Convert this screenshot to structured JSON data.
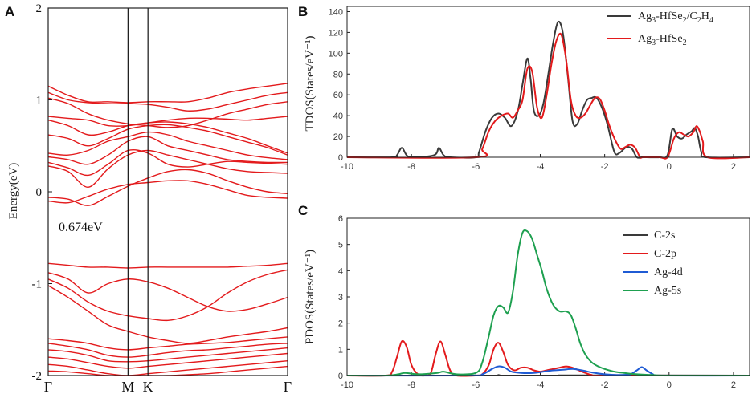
{
  "chart_data": [
    {
      "panel": "A",
      "type": "line",
      "title": "",
      "ylabel": "Energy(eV)",
      "ylim": [
        -2,
        2
      ],
      "yticks": [
        -2,
        -1,
        0,
        1,
        2
      ],
      "kpoints": [
        "Γ",
        "M",
        "K",
        "Γ"
      ],
      "kpoint_positions": [
        0,
        1,
        1.25,
        3.0
      ],
      "annotation": "0.674eV",
      "band_color": "#e31a1c",
      "bands": [
        {
          "name": "c1",
          "values": [
            -0.1,
            -0.12,
            -0.05,
            0.03,
            0.08,
            0.1,
            0.12,
            0.12,
            0.08,
            0.02,
            -0.04,
            -0.06,
            -0.07
          ]
        },
        {
          "name": "c2",
          "values": [
            -0.06,
            -0.08,
            -0.15,
            -0.05,
            0.06,
            0.15,
            0.22,
            0.24,
            0.2,
            0.12,
            0.05,
            0.0,
            -0.02
          ]
        },
        {
          "name": "c3",
          "values": [
            0.28,
            0.22,
            0.05,
            0.25,
            0.4,
            0.45,
            0.4,
            0.35,
            0.3,
            0.25,
            0.22,
            0.21,
            0.2
          ]
        },
        {
          "name": "c4",
          "values": [
            0.32,
            0.26,
            0.18,
            0.3,
            0.45,
            0.42,
            0.3,
            0.27,
            0.3,
            0.33,
            0.32,
            0.31,
            0.3
          ]
        },
        {
          "name": "c5",
          "values": [
            0.38,
            0.35,
            0.3,
            0.4,
            0.55,
            0.6,
            0.5,
            0.45,
            0.4,
            0.35,
            0.33,
            0.32,
            0.32
          ]
        },
        {
          "name": "c6",
          "values": [
            0.42,
            0.4,
            0.45,
            0.55,
            0.6,
            0.65,
            0.62,
            0.55,
            0.5,
            0.45,
            0.4,
            0.37,
            0.35
          ]
        },
        {
          "name": "c7",
          "values": [
            0.62,
            0.58,
            0.5,
            0.58,
            0.68,
            0.72,
            0.73,
            0.7,
            0.66,
            0.6,
            0.54,
            0.48,
            0.4
          ]
        },
        {
          "name": "c8",
          "values": [
            0.78,
            0.72,
            0.62,
            0.65,
            0.72,
            0.75,
            0.76,
            0.74,
            0.7,
            0.64,
            0.58,
            0.5,
            0.42
          ]
        },
        {
          "name": "c9",
          "values": [
            0.82,
            0.8,
            0.78,
            0.72,
            0.72,
            0.75,
            0.78,
            0.8,
            0.8,
            0.79,
            0.78,
            0.8,
            0.82
          ]
        },
        {
          "name": "c10",
          "values": [
            1.02,
            0.96,
            0.85,
            0.78,
            0.74,
            0.72,
            0.7,
            0.72,
            0.78,
            0.85,
            0.9,
            0.95,
            0.98
          ]
        },
        {
          "name": "c11",
          "values": [
            1.08,
            1.0,
            0.97,
            0.96,
            0.96,
            0.95,
            0.92,
            0.88,
            0.9,
            0.95,
            1.0,
            1.05,
            1.08
          ]
        },
        {
          "name": "c12",
          "values": [
            1.15,
            1.05,
            0.98,
            0.98,
            0.97,
            0.98,
            0.98,
            0.98,
            1.02,
            1.08,
            1.12,
            1.15,
            1.18
          ]
        },
        {
          "name": "v1",
          "values": [
            -0.78,
            -0.8,
            -0.82,
            -0.82,
            -0.83,
            -0.82,
            -0.82,
            -0.82,
            -0.82,
            -0.82,
            -0.81,
            -0.8,
            -0.78
          ]
        },
        {
          "name": "v2",
          "values": [
            -0.88,
            -0.95,
            -1.1,
            -1.0,
            -0.95,
            -0.98,
            -1.05,
            -1.15,
            -1.25,
            -1.3,
            -1.28,
            -1.22,
            -1.15
          ]
        },
        {
          "name": "v3",
          "values": [
            -0.95,
            -1.05,
            -1.2,
            -1.3,
            -1.35,
            -1.38,
            -1.4,
            -1.35,
            -1.25,
            -1.1,
            -0.98,
            -0.9,
            -0.85
          ]
        },
        {
          "name": "v4",
          "values": [
            -1.02,
            -1.15,
            -1.3,
            -1.45,
            -1.52,
            -1.58,
            -1.62,
            -1.65,
            -1.62,
            -1.58,
            -1.55,
            -1.52,
            -1.48
          ]
        },
        {
          "name": "v5",
          "values": [
            -1.6,
            -1.62,
            -1.65,
            -1.7,
            -1.72,
            -1.7,
            -1.68,
            -1.66,
            -1.65,
            -1.64,
            -1.62,
            -1.6,
            -1.58
          ]
        },
        {
          "name": "v6",
          "values": [
            -1.65,
            -1.68,
            -1.72,
            -1.78,
            -1.8,
            -1.78,
            -1.75,
            -1.73,
            -1.72,
            -1.7,
            -1.68,
            -1.66,
            -1.65
          ]
        },
        {
          "name": "v7",
          "values": [
            -1.72,
            -1.74,
            -1.78,
            -1.84,
            -1.85,
            -1.84,
            -1.82,
            -1.8,
            -1.78,
            -1.76,
            -1.74,
            -1.72,
            -1.7
          ]
        },
        {
          "name": "v8",
          "values": [
            -1.8,
            -1.82,
            -1.86,
            -1.9,
            -1.92,
            -1.9,
            -1.88,
            -1.86,
            -1.84,
            -1.82,
            -1.8,
            -1.78,
            -1.76
          ]
        },
        {
          "name": "v9",
          "values": [
            -1.88,
            -1.9,
            -1.94,
            -1.98,
            -2.0,
            -1.98,
            -1.96,
            -1.94,
            -1.92,
            -1.9,
            -1.88,
            -1.86,
            -1.84
          ]
        },
        {
          "name": "v10",
          "values": [
            -1.95,
            -1.96,
            -1.98,
            -2.0,
            -2.0,
            -2.0,
            -2.0,
            -1.99,
            -1.98,
            -1.96,
            -1.94,
            -1.92,
            -1.9
          ]
        }
      ]
    },
    {
      "panel": "B",
      "type": "line",
      "ylabel": "TDOS(States/eV⁻¹)",
      "xlim": [
        -10,
        2.5
      ],
      "ylim": [
        0,
        145
      ],
      "xticks": [
        -10,
        -8,
        -6,
        -4,
        -2,
        0,
        2
      ],
      "yticks": [
        0,
        20,
        40,
        60,
        80,
        100,
        120,
        140
      ],
      "legend_position": "top-right",
      "series": [
        {
          "name": "Ag3-HfSe2/C2H4",
          "legend_main": "Ag",
          "legend_sub": "3",
          "legend_rest": "-HfSe",
          "legend_sub2": "2",
          "legend_rest2": "/C",
          "legend_sub3": "2",
          "legend_rest3": "H",
          "legend_sub4": "4",
          "color": "#3a3a3a",
          "x": [
            -10,
            -8.6,
            -8.45,
            -8.3,
            -8.15,
            -8.0,
            -7.3,
            -7.15,
            -7.0,
            -6.8,
            -6.0,
            -5.9,
            -5.7,
            -5.5,
            -5.3,
            -5.1,
            -4.9,
            -4.7,
            -4.55,
            -4.4,
            -4.3,
            -4.2,
            -4.05,
            -3.9,
            -3.75,
            -3.6,
            -3.45,
            -3.3,
            -3.15,
            -3.0,
            -2.85,
            -2.7,
            -2.55,
            -2.4,
            -2.3,
            -2.2,
            -2.05,
            -1.9,
            -1.7,
            -1.55,
            -1.4,
            -1.3,
            -1.15,
            -1.0,
            -0.85,
            -0.7,
            -0.3,
            -0.05,
            0.1,
            0.25,
            0.4,
            0.55,
            0.7,
            0.8,
            0.9,
            1.0,
            1.15,
            2.5
          ],
          "y": [
            0,
            0,
            2,
            9,
            2,
            0,
            2,
            9,
            2,
            0,
            0,
            5,
            25,
            38,
            42,
            38,
            30,
            44,
            70,
            95,
            75,
            45,
            40,
            52,
            80,
            110,
            130,
            120,
            80,
            35,
            32,
            45,
            55,
            57,
            58,
            55,
            45,
            30,
            5,
            4,
            8,
            10,
            8,
            0,
            0,
            0,
            0,
            2,
            27,
            20,
            18,
            22,
            25,
            28,
            20,
            5,
            0,
            0
          ]
        },
        {
          "name": "Ag3-HfSe2",
          "legend_main": "Ag",
          "legend_sub": "3",
          "legend_rest": "-HfSe",
          "legend_sub2": "2",
          "color": "#e31a1c",
          "x": [
            -10,
            -6.0,
            -5.8,
            -5.6,
            -5.4,
            -5.2,
            -5.0,
            -4.85,
            -4.7,
            -4.55,
            -4.4,
            -4.25,
            -4.1,
            -3.95,
            -3.8,
            -3.65,
            -3.5,
            -3.35,
            -3.2,
            -3.05,
            -2.9,
            -2.75,
            -2.6,
            -2.45,
            -2.3,
            -2.15,
            -2.0,
            -1.85,
            -1.65,
            -1.5,
            -1.35,
            -1.2,
            -1.05,
            -0.9,
            -0.8,
            -0.3,
            -0.05,
            0.15,
            0.3,
            0.45,
            0.6,
            0.75,
            0.85,
            0.95,
            1.05,
            1.2,
            2.5
          ],
          "y": [
            0,
            0,
            8,
            25,
            35,
            40,
            42,
            38,
            45,
            55,
            85,
            82,
            48,
            38,
            60,
            90,
            112,
            118,
            95,
            55,
            40,
            38,
            42,
            50,
            57,
            56,
            45,
            30,
            15,
            8,
            10,
            12,
            9,
            0,
            0,
            0,
            0,
            18,
            24,
            22,
            20,
            24,
            30,
            25,
            15,
            0,
            0
          ]
        }
      ]
    },
    {
      "panel": "C",
      "type": "line",
      "ylabel": "PDOS(States/eV⁻¹)",
      "xlim": [
        -10,
        2.5
      ],
      "ylim": [
        0,
        6
      ],
      "xticks": [
        -10,
        -8,
        -6,
        -4,
        -2,
        0,
        2
      ],
      "yticks": [
        0,
        1,
        2,
        3,
        4,
        5,
        6
      ],
      "legend_position": "top-right",
      "series": [
        {
          "name": "C-2s",
          "color": "#3a3a3a",
          "x": [
            -10,
            -8.3,
            -7.0,
            -5.4,
            -5.3,
            -5.2,
            -4.0,
            -3.2,
            -3.0,
            2.5
          ],
          "y": [
            0,
            0,
            0,
            0,
            0.02,
            0,
            0,
            0,
            0.01,
            0
          ]
        },
        {
          "name": "C-2p",
          "color": "#e31a1c",
          "x": [
            -10,
            -8.8,
            -8.6,
            -8.45,
            -8.3,
            -8.15,
            -8.0,
            -7.8,
            -7.6,
            -7.4,
            -7.25,
            -7.1,
            -6.95,
            -6.8,
            -6.6,
            -6.0,
            -5.8,
            -5.6,
            -5.45,
            -5.3,
            -5.15,
            -5.0,
            -4.8,
            -4.6,
            -4.4,
            -4.2,
            -4.0,
            -3.8,
            -3.6,
            -3.4,
            -3.2,
            -3.0,
            -2.8,
            -2.6,
            -2.4,
            -2.0,
            2.5
          ],
          "y": [
            0,
            0,
            0.15,
            0.7,
            1.3,
            1.1,
            0.4,
            0.05,
            0,
            0.1,
            0.8,
            1.3,
            0.8,
            0.2,
            0,
            0,
            0.05,
            0.4,
            1.0,
            1.25,
            0.9,
            0.4,
            0.2,
            0.3,
            0.3,
            0.2,
            0.15,
            0.2,
            0.25,
            0.3,
            0.35,
            0.3,
            0.2,
            0.1,
            0.02,
            0,
            0
          ]
        },
        {
          "name": "Ag-4d",
          "color": "#1f5bd4",
          "x": [
            -10,
            -6.2,
            -5.8,
            -5.5,
            -5.3,
            -5.1,
            -4.9,
            -4.6,
            -4.2,
            -3.9,
            -3.6,
            -3.3,
            -3.0,
            -2.7,
            -2.4,
            -2.0,
            -1.5,
            -1.2,
            -1.0,
            -0.85,
            -0.7,
            -0.5,
            -0.3,
            2.5
          ],
          "y": [
            0,
            0,
            0.05,
            0.25,
            0.35,
            0.3,
            0.15,
            0.1,
            0.1,
            0.15,
            0.2,
            0.22,
            0.25,
            0.2,
            0.12,
            0.05,
            0.02,
            0.05,
            0.2,
            0.32,
            0.2,
            0.05,
            0,
            0
          ]
        },
        {
          "name": "Ag-5s",
          "color": "#1ea050",
          "x": [
            -10,
            -8.8,
            -8.4,
            -8.2,
            -7.8,
            -7.2,
            -7.0,
            -6.6,
            -6.0,
            -5.8,
            -5.6,
            -5.45,
            -5.3,
            -5.15,
            -5.0,
            -4.85,
            -4.7,
            -4.55,
            -4.4,
            -4.25,
            -4.1,
            -3.95,
            -3.8,
            -3.6,
            -3.4,
            -3.2,
            -3.05,
            -2.9,
            -2.75,
            -2.6,
            -2.4,
            -2.2,
            -2.0,
            -1.7,
            -1.4,
            -1.0,
            -0.5,
            0,
            2.5
          ],
          "y": [
            0,
            0,
            0.05,
            0.1,
            0.05,
            0.1,
            0.15,
            0.05,
            0.1,
            0.5,
            1.5,
            2.3,
            2.65,
            2.6,
            2.4,
            3.2,
            4.6,
            5.45,
            5.5,
            5.2,
            4.6,
            4.0,
            3.3,
            2.7,
            2.45,
            2.45,
            2.3,
            1.8,
            1.2,
            0.8,
            0.5,
            0.35,
            0.25,
            0.15,
            0.1,
            0.05,
            0.02,
            0,
            0
          ]
        }
      ]
    }
  ]
}
